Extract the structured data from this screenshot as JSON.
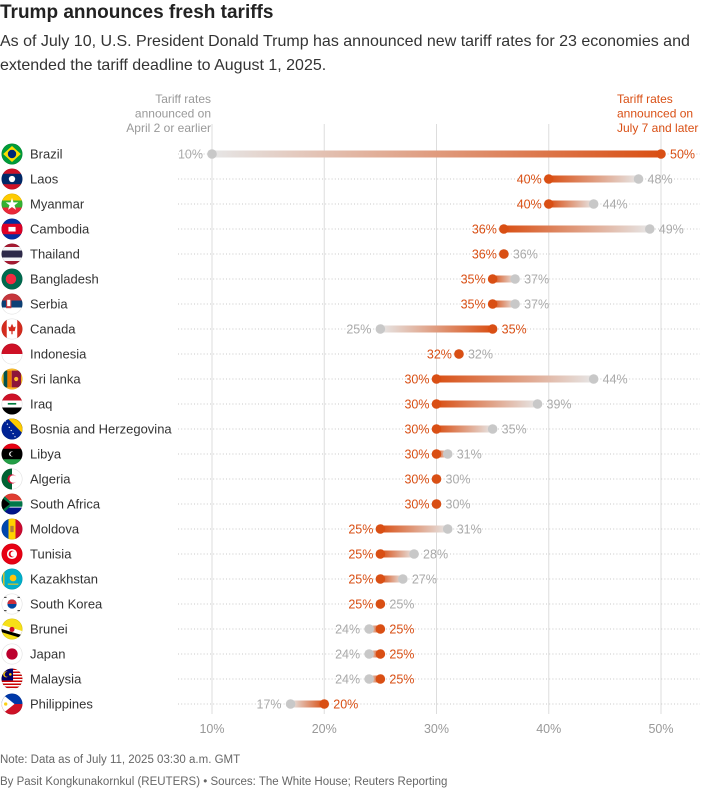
{
  "title": "Trump announces fresh tariffs",
  "subtitle": "As of July 10, U.S. President Donald Trump has announced new tariff rates for 23 economies and extended the tariff deadline to August 1, 2025.",
  "note": "Note: Data as of July 11, 2025 03:30 a.m. GMT",
  "credit": "By Pasit Kongkunakornkul (REUTERS) • Sources: The White House; Reuters Reporting",
  "colors": {
    "new": "#d94f14",
    "old": "#c8c8c8",
    "old_label": "#aaaaaa",
    "grid": "#dddddd",
    "dots": "#c9c9c9"
  },
  "chart_data": {
    "type": "dumbbell",
    "legend": {
      "old": [
        "Tariff rates",
        "announced on",
        "April 2 or earlier"
      ],
      "new": [
        "Tariff rates",
        "announced on",
        "July 7 and later"
      ]
    },
    "xlim": [
      5,
      52
    ],
    "x_ticks": [
      "10%",
      "20%",
      "30%",
      "40%",
      "50%"
    ],
    "x_tick_values": [
      10,
      20,
      30,
      40,
      50
    ],
    "series": [
      {
        "name": "Tariff rates announced on April 2 or earlier",
        "key": "old"
      },
      {
        "name": "Tariff rates announced on July 7 and later",
        "key": "new"
      }
    ],
    "rows": [
      {
        "country": "Brazil",
        "old": 10,
        "new": 50,
        "flag": "flag-brazil"
      },
      {
        "country": "Laos",
        "old": 48,
        "new": 40,
        "flag": "flag-laos"
      },
      {
        "country": "Myanmar",
        "old": 44,
        "new": 40,
        "flag": "flag-myanmar"
      },
      {
        "country": "Cambodia",
        "old": 49,
        "new": 36,
        "flag": "flag-cambodia"
      },
      {
        "country": "Thailand",
        "old": 36,
        "new": 36,
        "flag": "flag-thailand"
      },
      {
        "country": "Bangladesh",
        "old": 37,
        "new": 35,
        "flag": "flag-bangladesh"
      },
      {
        "country": "Serbia",
        "old": 37,
        "new": 35,
        "flag": "flag-serbia"
      },
      {
        "country": "Canada",
        "old": 25,
        "new": 35,
        "flag": "flag-canada"
      },
      {
        "country": "Indonesia",
        "old": 32,
        "new": 32,
        "flag": "flag-indonesia"
      },
      {
        "country": "Sri lanka",
        "old": 44,
        "new": 30,
        "flag": "flag-sri-lanka"
      },
      {
        "country": "Iraq",
        "old": 39,
        "new": 30,
        "flag": "flag-iraq"
      },
      {
        "country": "Bosnia and Herzegovina",
        "old": 35,
        "new": 30,
        "flag": "flag-bosnia"
      },
      {
        "country": "Libya",
        "old": 31,
        "new": 30,
        "flag": "flag-libya"
      },
      {
        "country": "Algeria",
        "old": 30,
        "new": 30,
        "flag": "flag-algeria"
      },
      {
        "country": "South Africa",
        "old": 30,
        "new": 30,
        "flag": "flag-south-africa"
      },
      {
        "country": "Moldova",
        "old": 31,
        "new": 25,
        "flag": "flag-moldova"
      },
      {
        "country": "Tunisia",
        "old": 28,
        "new": 25,
        "flag": "flag-tunisia"
      },
      {
        "country": "Kazakhstan",
        "old": 27,
        "new": 25,
        "flag": "flag-kazakhstan"
      },
      {
        "country": "South Korea",
        "old": 25,
        "new": 25,
        "flag": "flag-south-korea"
      },
      {
        "country": "Brunei",
        "old": 24,
        "new": 25,
        "flag": "flag-brunei"
      },
      {
        "country": "Japan",
        "old": 24,
        "new": 25,
        "flag": "flag-japan"
      },
      {
        "country": "Malaysia",
        "old": 24,
        "new": 25,
        "flag": "flag-malaysia"
      },
      {
        "country": "Philippines",
        "old": 17,
        "new": 20,
        "flag": "flag-philippines"
      }
    ]
  }
}
